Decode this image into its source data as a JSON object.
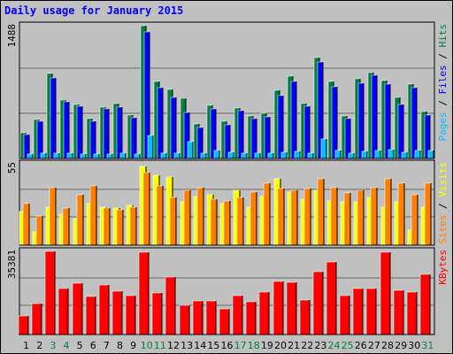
{
  "title": "Daily usage for January 2015",
  "colors": {
    "hits": "#008040",
    "files": "#0000ff",
    "pages": "#00c0ff",
    "visits": "#ffff00",
    "sites": "#ff8000",
    "kbytes": "#ff0000",
    "day_normal": "#000000",
    "day_weekend": "#008040",
    "background": "#c0c0c0"
  },
  "chart_data": [
    {
      "type": "bar",
      "panel": "top",
      "title": "Daily usage for January 2015",
      "ylabel_parts": [
        "Pages",
        "Files",
        "Hits"
      ],
      "ylabel_sep": " / ",
      "ymax_label": "1488",
      "ylim": [
        0,
        1488
      ],
      "categories": [
        "1",
        "2",
        "3",
        "4",
        "5",
        "6",
        "7",
        "8",
        "9",
        "10",
        "11",
        "12",
        "13",
        "14",
        "15",
        "16",
        "17",
        "18",
        "19",
        "20",
        "21",
        "22",
        "23",
        "24",
        "25",
        "26",
        "27",
        "28",
        "29",
        "30",
        "31"
      ],
      "series": [
        {
          "name": "Hits",
          "color": "#008040",
          "values": [
            290,
            440,
            950,
            650,
            610,
            450,
            580,
            620,
            490,
            1488,
            860,
            770,
            670,
            390,
            600,
            420,
            570,
            480,
            510,
            760,
            920,
            620,
            1130,
            860,
            480,
            890,
            960,
            870,
            680,
            830,
            530
          ]
        },
        {
          "name": "Files",
          "color": "#0000ff",
          "values": [
            270,
            420,
            900,
            630,
            590,
            420,
            560,
            580,
            460,
            1420,
            790,
            680,
            520,
            350,
            560,
            380,
            540,
            450,
            470,
            700,
            860,
            590,
            1080,
            800,
            450,
            840,
            930,
            830,
            610,
            790,
            490
          ]
        },
        {
          "name": "Pages",
          "color": "#00c0ff",
          "values": [
            50,
            60,
            60,
            60,
            50,
            50,
            50,
            60,
            50,
            260,
            60,
            60,
            190,
            60,
            90,
            70,
            60,
            60,
            60,
            70,
            80,
            60,
            220,
            90,
            60,
            80,
            90,
            100,
            70,
            90,
            90
          ]
        }
      ]
    },
    {
      "type": "bar",
      "panel": "middle",
      "ylabel_parts": [
        "Sites",
        "Visits"
      ],
      "ylabel_sep": " / ",
      "ymax_label": "55",
      "ylim": [
        0,
        55
      ],
      "categories": [
        "1",
        "2",
        "3",
        "4",
        "5",
        "6",
        "7",
        "8",
        "9",
        "10",
        "11",
        "12",
        "13",
        "14",
        "15",
        "16",
        "17",
        "18",
        "19",
        "20",
        "21",
        "22",
        "23",
        "24",
        "25",
        "26",
        "27",
        "28",
        "29",
        "30",
        "31"
      ],
      "series": [
        {
          "name": "Visits",
          "color": "#ffff00",
          "values": [
            23,
            9,
            26,
            21,
            18,
            28,
            26,
            25,
            27,
            53,
            47,
            46,
            29,
            33,
            34,
            28,
            37,
            26,
            33,
            45,
            36,
            31,
            37,
            30,
            29,
            29,
            32,
            26,
            29,
            10,
            26
          ]
        },
        {
          "name": "Sites",
          "color": "#ff8000",
          "values": [
            28,
            20,
            39,
            25,
            34,
            40,
            25,
            24,
            26,
            49,
            40,
            32,
            37,
            39,
            31,
            30,
            32,
            36,
            42,
            38,
            37,
            38,
            45,
            39,
            35,
            37,
            39,
            45,
            42,
            34,
            42
          ]
        }
      ]
    },
    {
      "type": "bar",
      "panel": "bottom",
      "ylabel_parts": [
        "KBytes"
      ],
      "ylabel_sep": "",
      "ymax_label": "35381",
      "ylim": [
        0,
        35381
      ],
      "categories": [
        "1",
        "2",
        "3",
        "4",
        "5",
        "6",
        "7",
        "8",
        "9",
        "10",
        "11",
        "12",
        "13",
        "14",
        "15",
        "16",
        "17",
        "18",
        "19",
        "20",
        "21",
        "22",
        "23",
        "24",
        "25",
        "26",
        "27",
        "28",
        "29",
        "30",
        "31"
      ],
      "series": [
        {
          "name": "KBytes",
          "color": "#ff0000",
          "values": [
            8000,
            13000,
            35381,
            19500,
            22000,
            16000,
            21000,
            18500,
            16500,
            35000,
            17800,
            24500,
            12500,
            14400,
            14200,
            11000,
            16700,
            14000,
            18000,
            22600,
            22100,
            14800,
            26600,
            30900,
            16500,
            19700,
            19500,
            35100,
            19000,
            18100,
            25600
          ]
        }
      ]
    }
  ],
  "days": [
    {
      "label": "1",
      "weekend": false
    },
    {
      "label": "2",
      "weekend": false
    },
    {
      "label": "3",
      "weekend": true
    },
    {
      "label": "4",
      "weekend": true
    },
    {
      "label": "5",
      "weekend": false
    },
    {
      "label": "6",
      "weekend": false
    },
    {
      "label": "7",
      "weekend": false
    },
    {
      "label": "8",
      "weekend": false
    },
    {
      "label": "9",
      "weekend": false
    },
    {
      "label": "10",
      "weekend": true
    },
    {
      "label": "11",
      "weekend": true
    },
    {
      "label": "12",
      "weekend": false
    },
    {
      "label": "13",
      "weekend": false
    },
    {
      "label": "14",
      "weekend": false
    },
    {
      "label": "15",
      "weekend": false
    },
    {
      "label": "16",
      "weekend": false
    },
    {
      "label": "17",
      "weekend": true
    },
    {
      "label": "18",
      "weekend": true
    },
    {
      "label": "19",
      "weekend": false
    },
    {
      "label": "20",
      "weekend": false
    },
    {
      "label": "21",
      "weekend": false
    },
    {
      "label": "22",
      "weekend": false
    },
    {
      "label": "23",
      "weekend": false
    },
    {
      "label": "24",
      "weekend": true
    },
    {
      "label": "25",
      "weekend": true
    },
    {
      "label": "26",
      "weekend": false
    },
    {
      "label": "27",
      "weekend": false
    },
    {
      "label": "28",
      "weekend": false
    },
    {
      "label": "29",
      "weekend": false
    },
    {
      "label": "30",
      "weekend": false
    },
    {
      "label": "31",
      "weekend": true
    }
  ]
}
